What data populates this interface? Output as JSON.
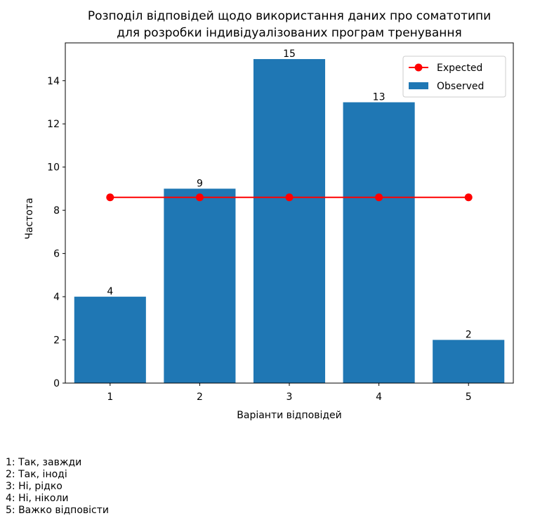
{
  "chart_data": {
    "type": "bar",
    "title_lines": [
      "Розподіл відповідей щодо використання даних про соматотипи",
      "для розробки індивідуалізованих програм тренування"
    ],
    "xlabel": "Варіанти відповідей",
    "ylabel": "Частота",
    "categories": [
      "1",
      "2",
      "3",
      "4",
      "5"
    ],
    "series": [
      {
        "name": "Observed",
        "kind": "bar",
        "values": [
          4,
          9,
          15,
          13,
          2
        ],
        "color": "#1f77b4"
      },
      {
        "name": "Expected",
        "kind": "line",
        "values": [
          8.6,
          8.6,
          8.6,
          8.6,
          8.6
        ],
        "color": "#ff0000"
      }
    ],
    "y_ticks": [
      "0",
      "2",
      "4",
      "6",
      "8",
      "10",
      "12",
      "14"
    ],
    "ylim": [
      0,
      15.75
    ],
    "grid": false,
    "legend_position": "top-right"
  },
  "answer_notes": [
    "1: Так, завжди",
    "2: Так, іноді",
    "3: Ні, рідко",
    "4: Ні, ніколи",
    "5: Важко відповісти"
  ]
}
